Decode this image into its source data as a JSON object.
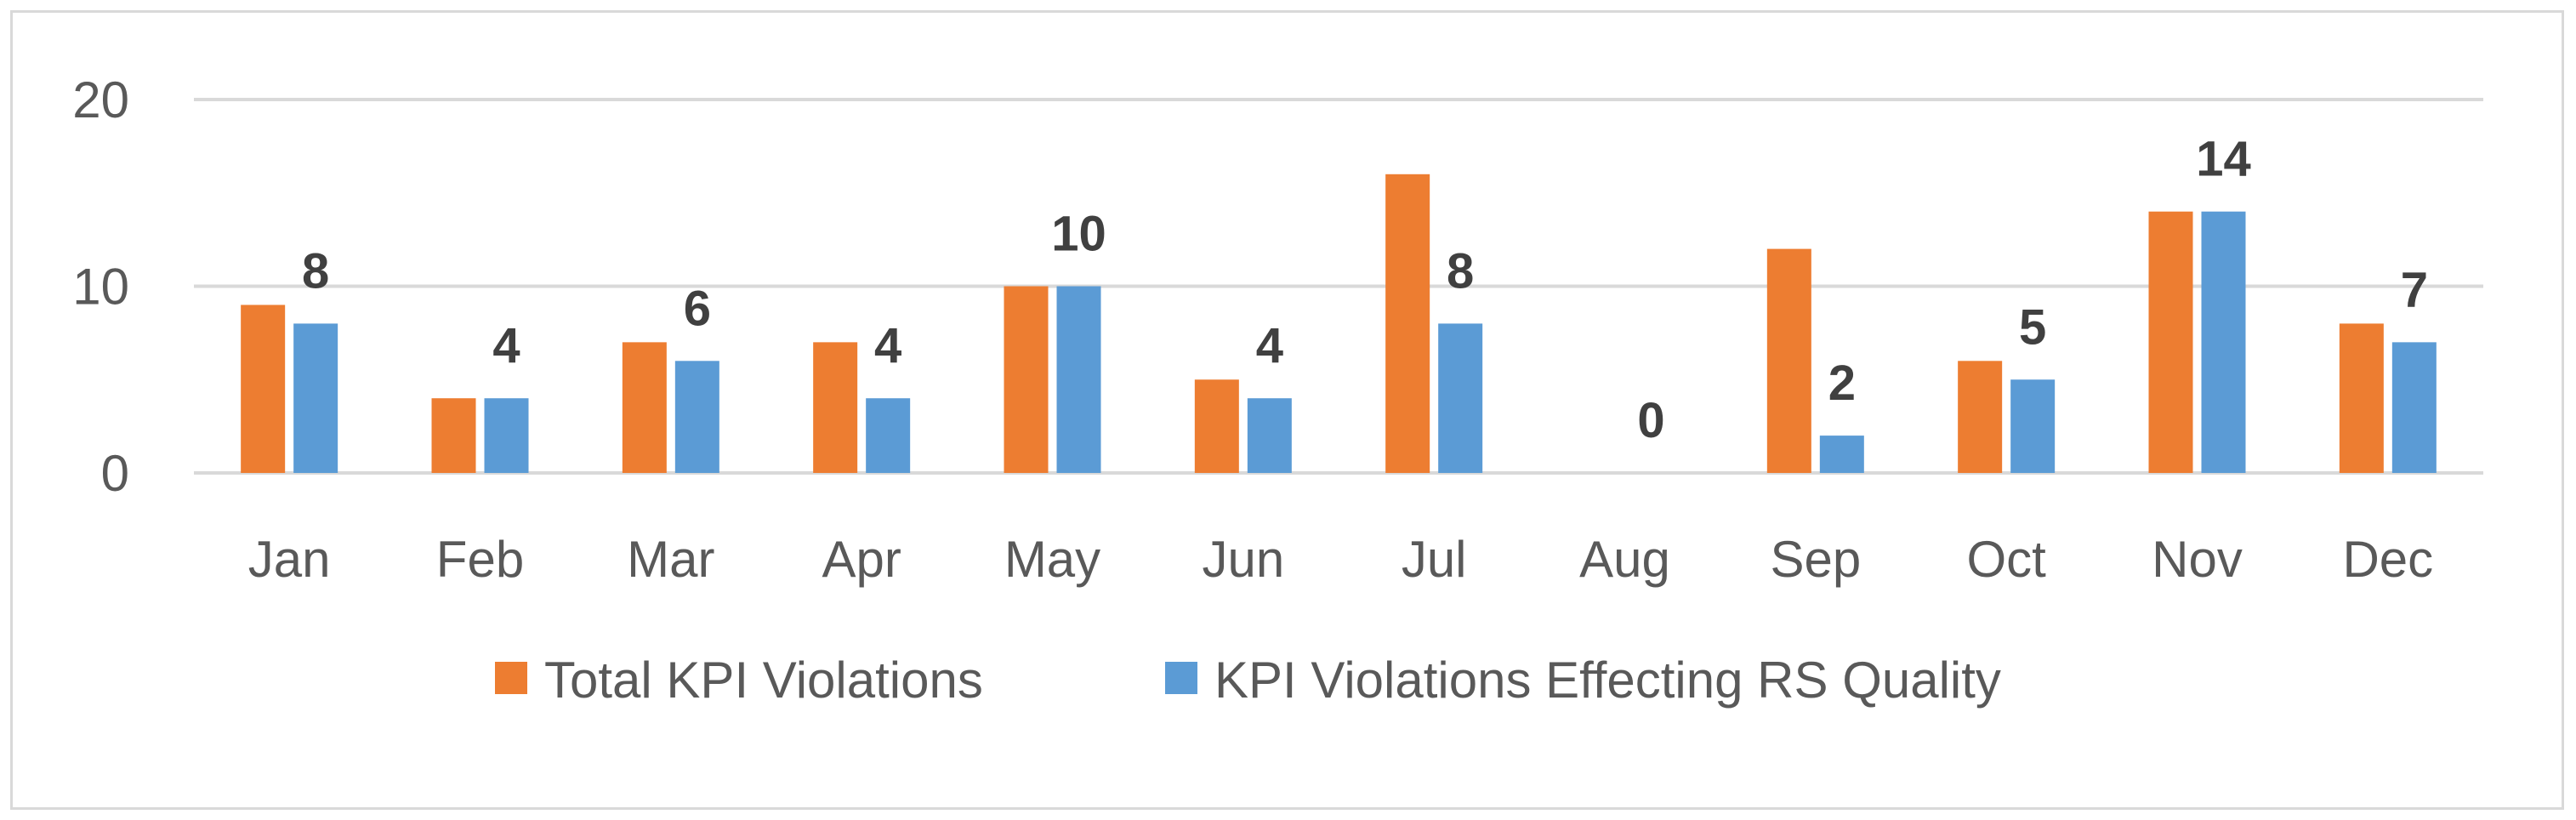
{
  "chart_data": {
    "type": "bar",
    "title": "",
    "xlabel": "",
    "ylabel": "",
    "ylim": [
      0,
      20
    ],
    "yticks": [
      0,
      10,
      20
    ],
    "grid": true,
    "legend_position": "bottom",
    "categories": [
      "Jan",
      "Feb",
      "Mar",
      "Apr",
      "May",
      "Jun",
      "Jul",
      "Aug",
      "Sep",
      "Oct",
      "Nov",
      "Dec"
    ],
    "series": [
      {
        "name": "Total KPI Violations",
        "color": "#ed7d31",
        "values": [
          9,
          4,
          7,
          7,
          10,
          5,
          16,
          0,
          12,
          6,
          14,
          8
        ]
      },
      {
        "name": "KPI Violations Effecting RS Quality",
        "color": "#5b9bd5",
        "values": [
          8,
          4,
          6,
          4,
          10,
          4,
          8,
          0,
          2,
          5,
          14,
          7
        ]
      }
    ],
    "data_labels_series": "KPI Violations Effecting RS Quality",
    "data_labels": [
      "8",
      "4",
      "6",
      "4",
      "10",
      "4",
      "8",
      "0",
      "2",
      "5",
      "14",
      "7"
    ]
  }
}
